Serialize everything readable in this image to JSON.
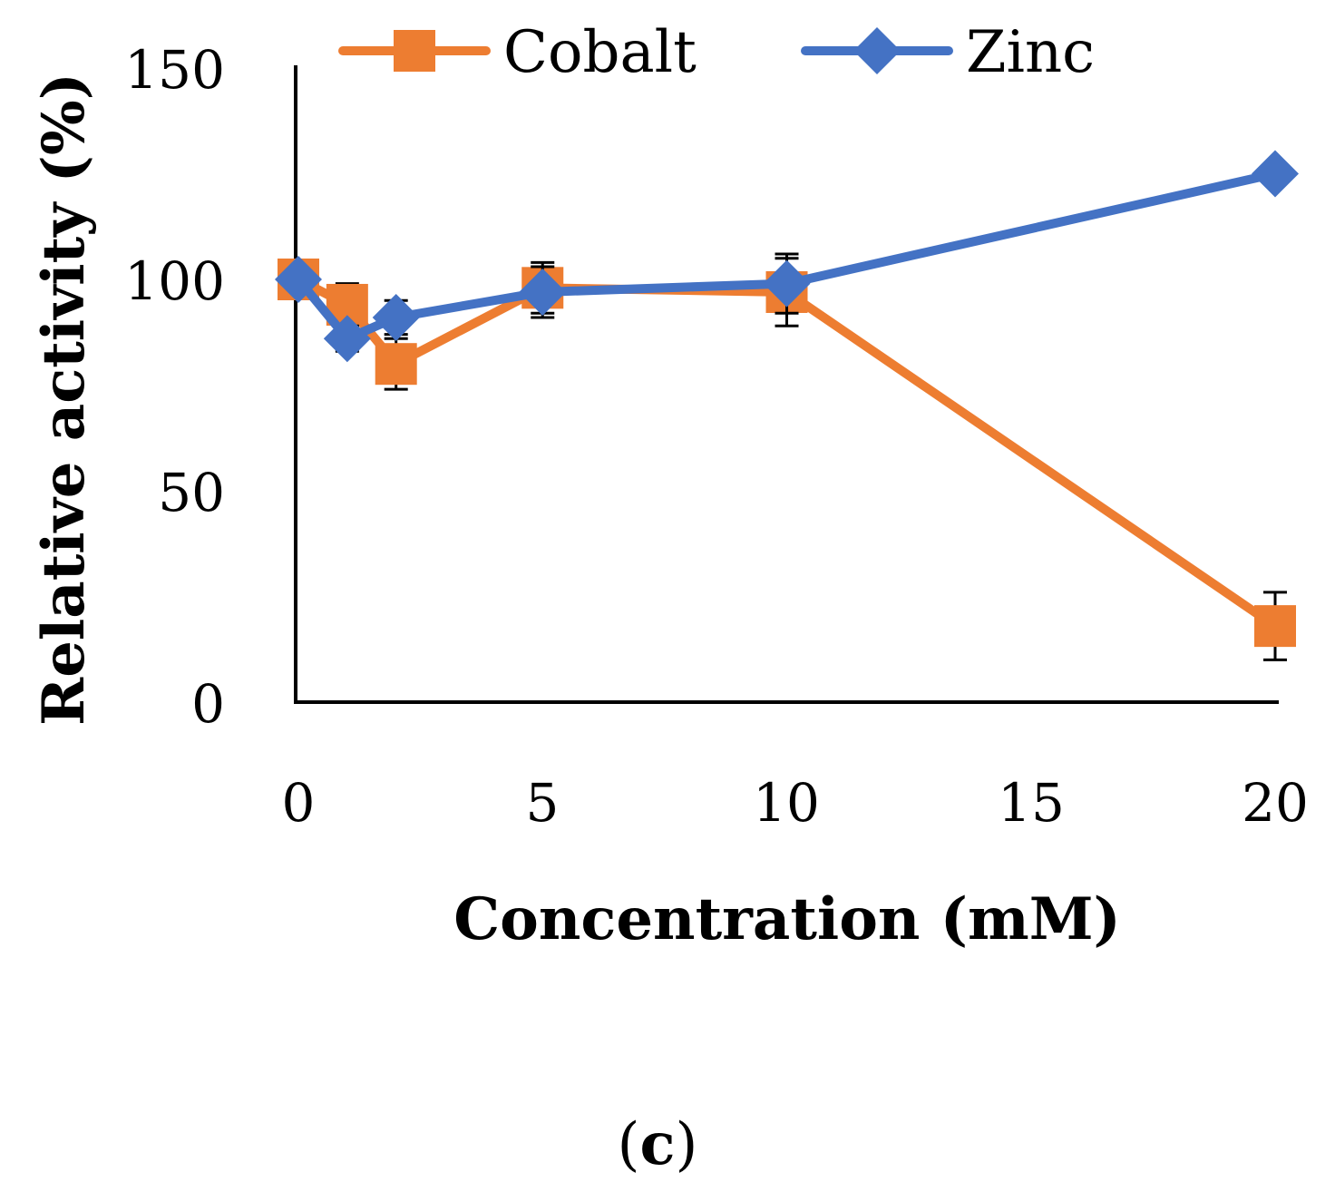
{
  "chart_data": {
    "type": "line",
    "xlabel": "Concentration (mM)",
    "ylabel": "Relative activity (%)",
    "panel_label": {
      "open": "(",
      "letter": "c",
      "close": ")"
    },
    "xlim": [
      0,
      20
    ],
    "ylim": [
      0,
      150
    ],
    "x_ticks": [
      "0",
      "5",
      "10",
      "15",
      "20"
    ],
    "y_ticks": [
      "0",
      "50",
      "100",
      "150"
    ],
    "grid": false,
    "legend_position": "top",
    "x": [
      0,
      1,
      2,
      5,
      10,
      20
    ],
    "series": [
      {
        "name": "Cobalt",
        "color": "#ED7D31",
        "marker": "square",
        "values": [
          100,
          94,
          80,
          98,
          97,
          18
        ],
        "errors": [
          0,
          5,
          6,
          6,
          8,
          8
        ]
      },
      {
        "name": "Zinc",
        "color": "#4472C4",
        "marker": "diamond",
        "values": [
          100,
          86,
          91,
          97,
          99,
          125
        ],
        "errors": [
          0,
          3,
          4,
          6,
          7,
          2
        ]
      }
    ]
  }
}
